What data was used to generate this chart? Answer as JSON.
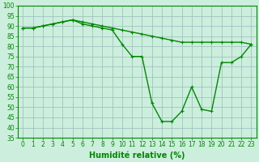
{
  "xlabel": "Humidité relative (%)",
  "hours": [
    0,
    1,
    2,
    3,
    4,
    5,
    6,
    7,
    8,
    9,
    10,
    11,
    12,
    13,
    14,
    15,
    16,
    17,
    18,
    19,
    20,
    21,
    22,
    23
  ],
  "line1": [
    89,
    89,
    90,
    91,
    92,
    93,
    92,
    91,
    90,
    89,
    88,
    87,
    86,
    85,
    84,
    83,
    82,
    82,
    82,
    82,
    82,
    82,
    82,
    81
  ],
  "line2": [
    89,
    89,
    90,
    91,
    92,
    93,
    91,
    90,
    89,
    88,
    81,
    75,
    75,
    52,
    43,
    43,
    48,
    60,
    49,
    48,
    72,
    72,
    75,
    81
  ],
  "line_color": "#008800",
  "bg_color": "#cceedd",
  "grid_color": "#99bbbb",
  "ylim": [
    35,
    100
  ],
  "yticks": [
    35,
    40,
    45,
    50,
    55,
    60,
    65,
    70,
    75,
    80,
    85,
    90,
    95,
    100
  ],
  "xticks": [
    0,
    1,
    2,
    3,
    4,
    5,
    6,
    7,
    8,
    9,
    10,
    11,
    12,
    13,
    14,
    15,
    16,
    17,
    18,
    19,
    20,
    21,
    22,
    23
  ],
  "marker": "+",
  "marker_size": 3,
  "line_width": 1.0,
  "label_fontsize": 7,
  "tick_fontsize": 5.5
}
